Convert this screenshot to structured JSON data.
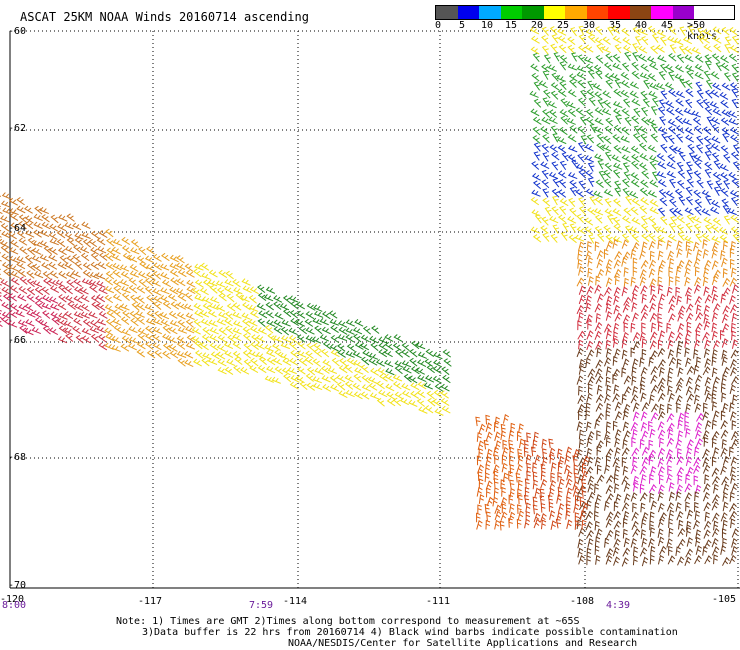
{
  "title": "ASCAT 25KM NOAA Winds 20160714 ascending",
  "legend": {
    "ticks": [
      "0",
      "5",
      "10",
      "15",
      "20",
      "25",
      "30",
      "35",
      "40",
      "45",
      ">50 knots"
    ],
    "colors": [
      "#555555",
      "#0000ee",
      "#00aaff",
      "#00cc00",
      "#009900",
      "#ffff00",
      "#ffaa00",
      "#ff4400",
      "#ff0000",
      "#8b4513",
      "#ff00ff",
      "#9900cc"
    ]
  },
  "axes": {
    "y_labels": [
      "-60",
      "-62",
      "-64",
      "-66",
      "-68",
      "-70"
    ],
    "x_labels": [
      "-120",
      "-117",
      "-114",
      "-111",
      "-108",
      "-105"
    ]
  },
  "time_labels": [
    "8:00",
    "7:59",
    "4:39"
  ],
  "notes": [
    "Note: 1) Times are GMT 2)Times along bottom correspond to measurement at ~65S",
    "3)Data buffer is 22 hrs from 20160714 4) Black wind barbs indicate possible contamination",
    "NOAA/NESDIS/Center for Satellite Applications and Research"
  ]
}
